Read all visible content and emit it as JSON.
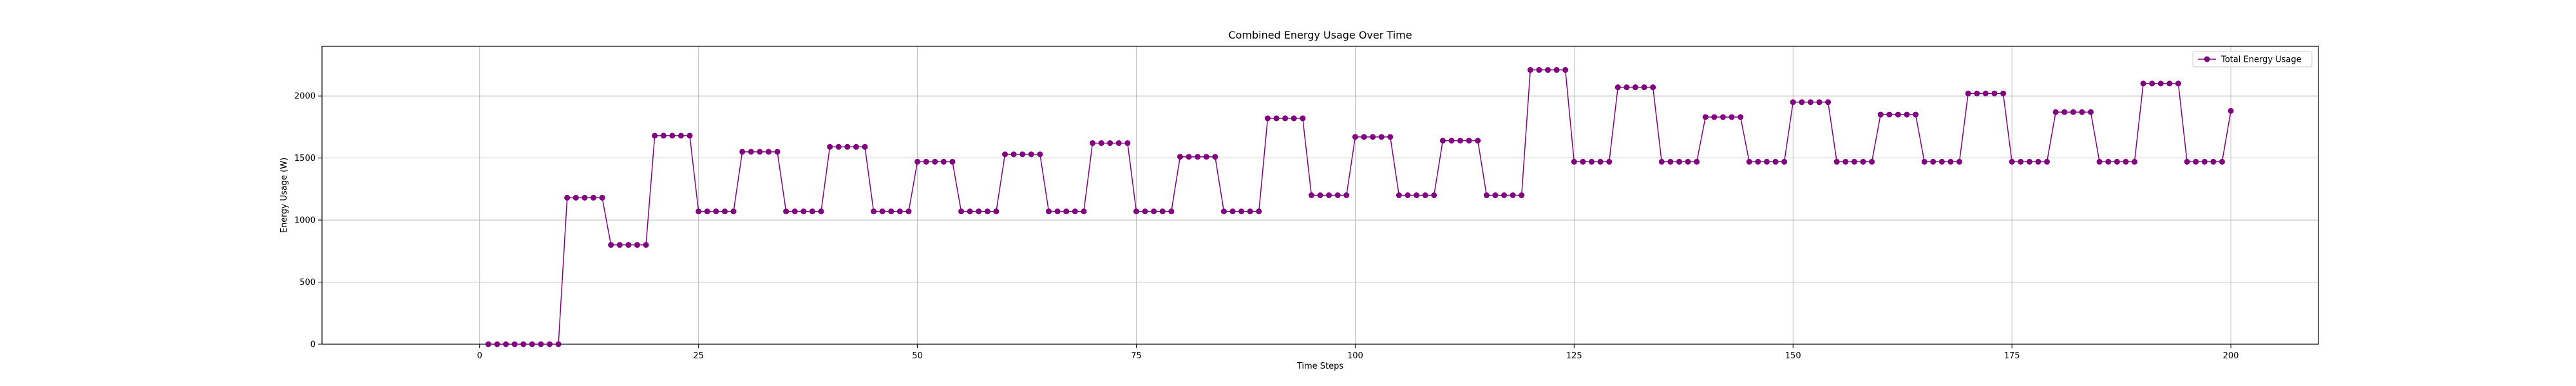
{
  "chart_data": {
    "type": "line",
    "title": "Combined Energy Usage Over Time",
    "xlabel": "Time Steps",
    "ylabel": "Energy Usage (W)",
    "xlim": [
      -18,
      210
    ],
    "ylim": [
      0,
      2400
    ],
    "xticks": [
      0,
      25,
      50,
      75,
      100,
      125,
      150,
      175,
      200
    ],
    "yticks": [
      0,
      500,
      1000,
      1500,
      2000
    ],
    "grid": true,
    "legend_position": "top-right",
    "colors": {
      "series": "#800080",
      "grid": "#b0b0b0",
      "axis": "#000000"
    },
    "series": [
      {
        "name": "Total Energy Usage",
        "marker": "circle",
        "blocks": [
          {
            "start": 1,
            "end": 9,
            "value": 0
          },
          {
            "start": 10,
            "end": 14,
            "value": 1180
          },
          {
            "start": 15,
            "end": 19,
            "value": 800
          },
          {
            "start": 20,
            "end": 24,
            "value": 1680
          },
          {
            "start": 25,
            "end": 29,
            "value": 1070
          },
          {
            "start": 30,
            "end": 34,
            "value": 1550
          },
          {
            "start": 35,
            "end": 39,
            "value": 1070
          },
          {
            "start": 40,
            "end": 44,
            "value": 1590
          },
          {
            "start": 45,
            "end": 49,
            "value": 1070
          },
          {
            "start": 50,
            "end": 54,
            "value": 1470
          },
          {
            "start": 55,
            "end": 59,
            "value": 1070
          },
          {
            "start": 60,
            "end": 64,
            "value": 1530
          },
          {
            "start": 65,
            "end": 69,
            "value": 1070
          },
          {
            "start": 70,
            "end": 74,
            "value": 1620
          },
          {
            "start": 75,
            "end": 79,
            "value": 1070
          },
          {
            "start": 80,
            "end": 84,
            "value": 1510
          },
          {
            "start": 85,
            "end": 89,
            "value": 1070
          },
          {
            "start": 90,
            "end": 94,
            "value": 1820
          },
          {
            "start": 95,
            "end": 99,
            "value": 1200
          },
          {
            "start": 100,
            "end": 104,
            "value": 1670
          },
          {
            "start": 105,
            "end": 109,
            "value": 1200
          },
          {
            "start": 110,
            "end": 114,
            "value": 1640
          },
          {
            "start": 115,
            "end": 119,
            "value": 1200
          },
          {
            "start": 120,
            "end": 124,
            "value": 2210
          },
          {
            "start": 125,
            "end": 129,
            "value": 1470
          },
          {
            "start": 130,
            "end": 134,
            "value": 2070
          },
          {
            "start": 135,
            "end": 139,
            "value": 1470
          },
          {
            "start": 140,
            "end": 144,
            "value": 1830
          },
          {
            "start": 145,
            "end": 149,
            "value": 1470
          },
          {
            "start": 150,
            "end": 154,
            "value": 1950
          },
          {
            "start": 155,
            "end": 159,
            "value": 1470
          },
          {
            "start": 160,
            "end": 164,
            "value": 1850
          },
          {
            "start": 165,
            "end": 169,
            "value": 1470
          },
          {
            "start": 170,
            "end": 174,
            "value": 2020
          },
          {
            "start": 175,
            "end": 179,
            "value": 1470
          },
          {
            "start": 180,
            "end": 184,
            "value": 1870
          },
          {
            "start": 185,
            "end": 189,
            "value": 1470
          },
          {
            "start": 190,
            "end": 194,
            "value": 2100
          },
          {
            "start": 195,
            "end": 199,
            "value": 1470
          },
          {
            "start": 200,
            "end": 200,
            "value": 1880
          }
        ]
      }
    ]
  }
}
